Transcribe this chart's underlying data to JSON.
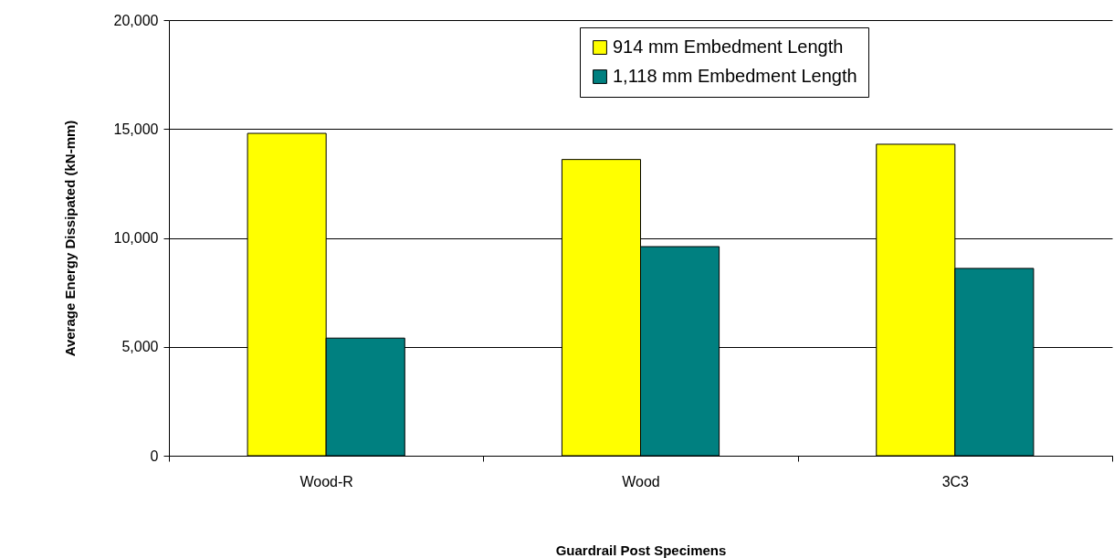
{
  "chart_data": {
    "type": "bar",
    "xlabel": "Guardrail Post Specimens",
    "ylabel": "Average Energy Dissipated (kN-mm)",
    "categories": [
      "Wood-R",
      "Wood",
      "3C3"
    ],
    "series": [
      {
        "name": "914 mm Embedment Length",
        "color": "#ffff00",
        "values": [
          14800,
          13600,
          14300
        ]
      },
      {
        "name": "1,118 mm Embedment Length",
        "color": "#008080",
        "values": [
          5400,
          9600,
          8600
        ]
      }
    ],
    "ylim": [
      0,
      20000
    ],
    "yticks": [
      {
        "value": 0,
        "label": "0"
      },
      {
        "value": 5000,
        "label": "5,000"
      },
      {
        "value": 10000,
        "label": "10,000"
      },
      {
        "value": 15000,
        "label": "15,000"
      },
      {
        "value": 20000,
        "label": "20,000"
      }
    ],
    "grid": "y",
    "legend": "top right"
  }
}
